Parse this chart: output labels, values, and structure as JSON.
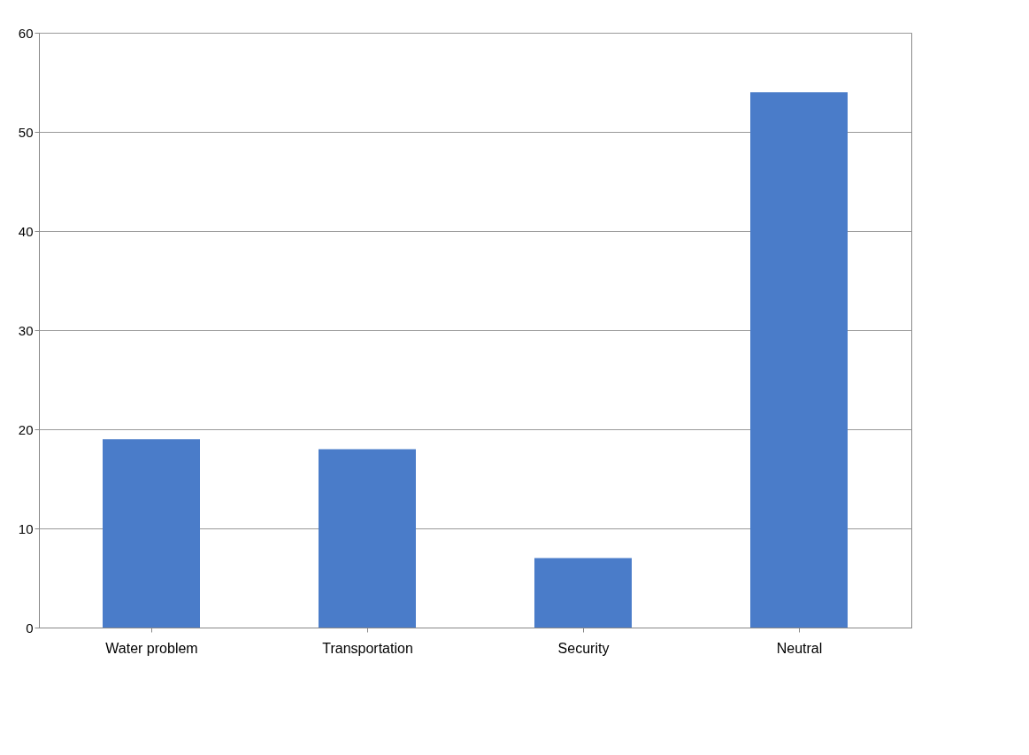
{
  "chart_data": {
    "type": "bar",
    "categories": [
      "Water problem",
      "Transportation",
      "Security",
      "Neutral"
    ],
    "values": [
      19,
      18,
      7,
      54
    ],
    "color": "#4a7cc9",
    "ylim": [
      0,
      60
    ],
    "yticks": [
      0,
      10,
      20,
      30,
      40,
      50,
      60
    ],
    "grid": "y"
  }
}
